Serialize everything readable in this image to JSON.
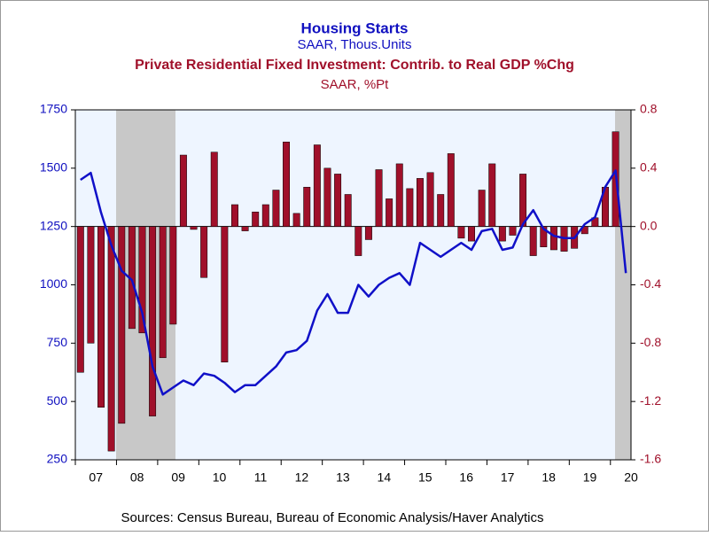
{
  "chart_data": {
    "type": "bar_line",
    "series": [
      {
        "name": "Housing Starts",
        "units": "SAAR, Thous.Units",
        "type": "line",
        "axis": "y",
        "color": "#1010c8",
        "values": [
          1450,
          1480,
          1310,
          1170,
          1060,
          1020,
          880,
          650,
          530,
          560,
          590,
          570,
          620,
          610,
          580,
          540,
          570,
          570,
          610,
          650,
          710,
          720,
          760,
          890,
          960,
          880,
          880,
          1000,
          950,
          1000,
          1030,
          1050,
          1000,
          1180,
          1150,
          1120,
          1150,
          1180,
          1150,
          1230,
          1240,
          1150,
          1160,
          1260,
          1320,
          1240,
          1210,
          1200,
          1200,
          1260,
          1290,
          1420,
          1490,
          1050
        ]
      },
      {
        "name": "Private Residential Fixed Investment: Contrib. to Real GDP %Chg",
        "units": "SAAR, %Pt",
        "type": "bar",
        "axis": "y2",
        "color": "#a0102a",
        "values": [
          -1.0,
          -0.8,
          -1.24,
          -1.54,
          -1.35,
          -0.7,
          -0.73,
          -1.3,
          -0.9,
          -0.67,
          0.49,
          -0.02,
          -0.35,
          0.51,
          -0.93,
          0.15,
          -0.03,
          0.1,
          0.15,
          0.25,
          0.58,
          0.09,
          0.27,
          0.56,
          0.4,
          0.36,
          0.22,
          -0.2,
          -0.09,
          0.39,
          0.19,
          0.43,
          0.26,
          0.33,
          0.37,
          0.22,
          0.5,
          -0.08,
          -0.1,
          0.25,
          0.43,
          -0.1,
          -0.06,
          0.36,
          -0.2,
          -0.14,
          -0.16,
          -0.17,
          -0.15,
          -0.05,
          0.06,
          0.27,
          0.65,
          null
        ]
      }
    ],
    "categories": [
      null,
      "07",
      null,
      null,
      null,
      "08",
      null,
      null,
      null,
      "09",
      null,
      null,
      null,
      "10",
      null,
      null,
      null,
      "11",
      null,
      null,
      null,
      "12",
      null,
      null,
      null,
      "13",
      null,
      null,
      null,
      "14",
      null,
      null,
      null,
      "15",
      null,
      null,
      null,
      "16",
      null,
      null,
      null,
      "17",
      null,
      null,
      null,
      "18",
      null,
      null,
      null,
      "19",
      null,
      null,
      null,
      "20"
    ],
    "ylim": [
      250,
      1750
    ],
    "yticks": [
      250,
      500,
      750,
      1000,
      1250,
      1500,
      1750
    ],
    "y2lim": [
      -1.6,
      0.8
    ],
    "y2ticks": [
      -1.6,
      -1.2,
      -0.8,
      -0.4,
      {
        "value": 0,
        "label": "0.0"
      },
      0.4,
      0.8
    ],
    "source": "Sources:  Census Bureau, Bureau of Economic Analysis/Haver Analytics"
  }
}
